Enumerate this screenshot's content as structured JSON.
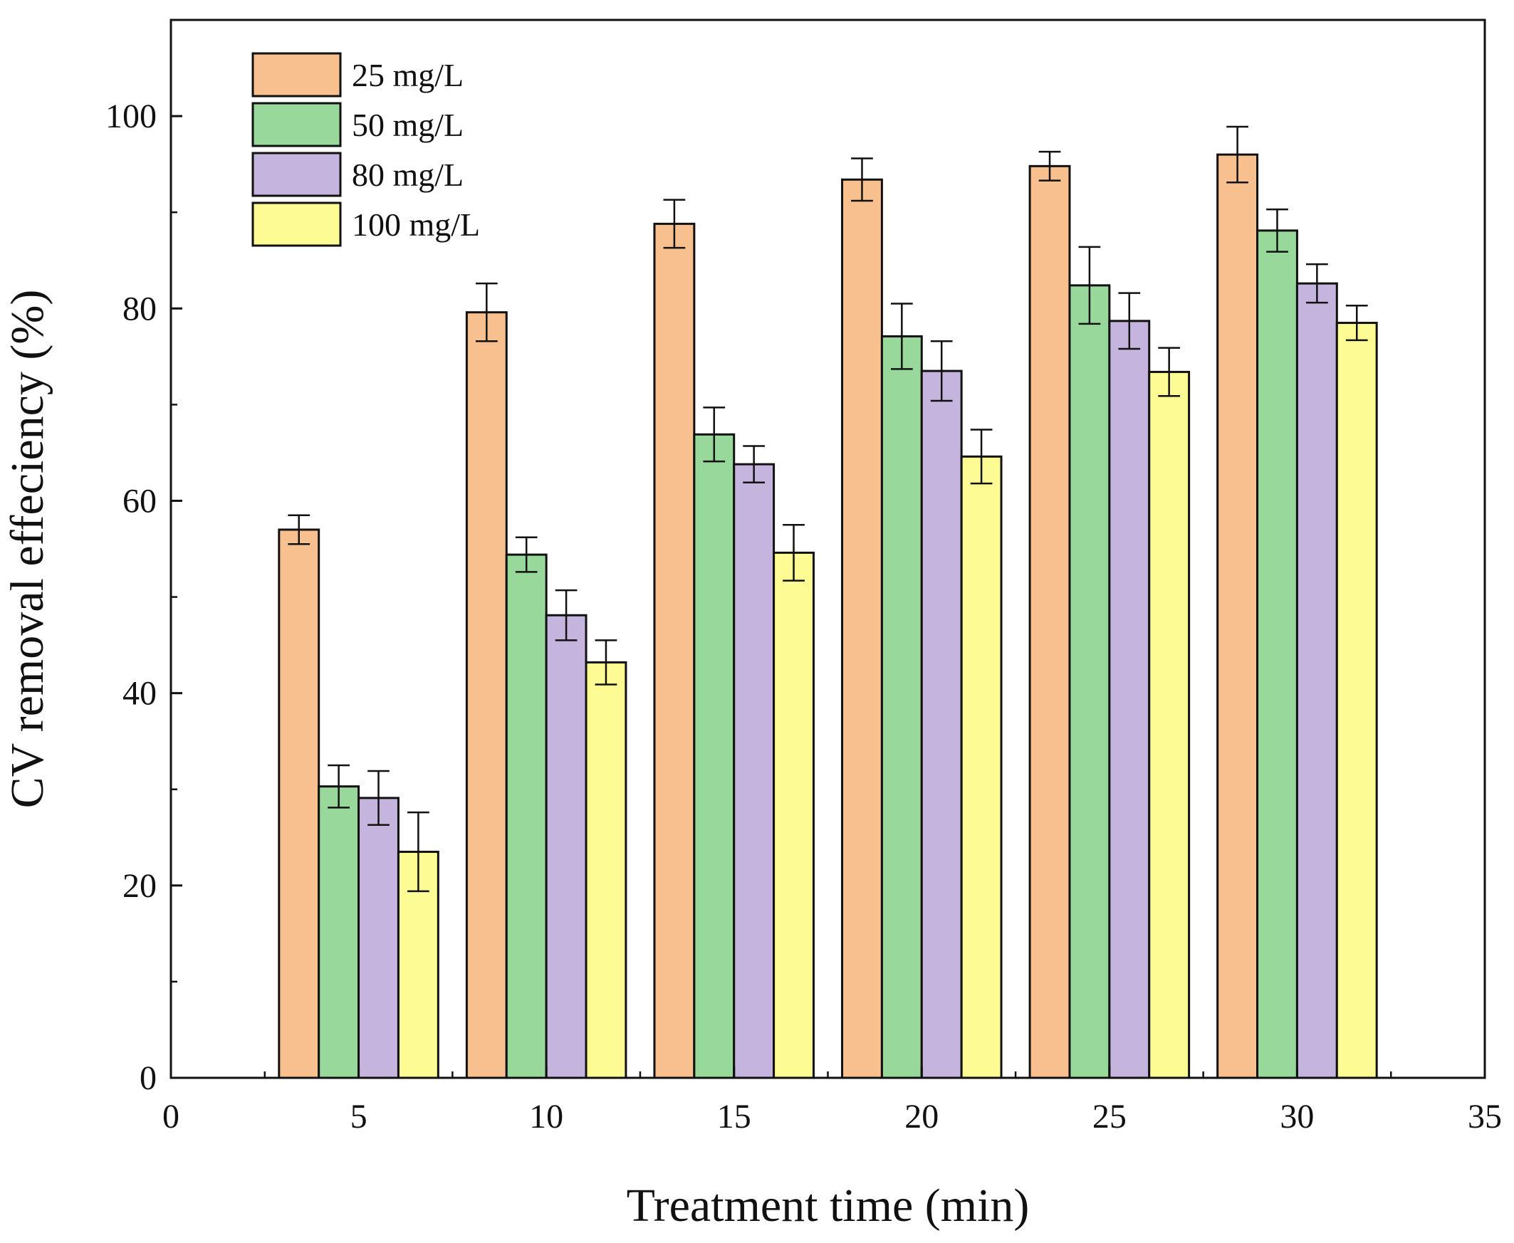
{
  "chart_data": {
    "type": "bar",
    "title": "",
    "xlabel": "Treatment time (min)",
    "ylabel": "CV removal effeciency (%)",
    "xlim": [
      0,
      35
    ],
    "ylim": [
      0,
      110
    ],
    "x_ticks": [
      "0",
      "5",
      "10",
      "15",
      "20",
      "25",
      "30",
      "35"
    ],
    "y_ticks": [
      "0",
      "20",
      "40",
      "60",
      "80",
      "100"
    ],
    "x": [
      5,
      10,
      15,
      20,
      25,
      30
    ],
    "grid": false,
    "legend_position": "top-left",
    "error_bars": true,
    "series": [
      {
        "name": "25 mg/L",
        "color": "#f9c08f",
        "values": [
          57.0,
          79.6,
          88.8,
          93.4,
          94.8,
          96.0
        ],
        "errors": [
          1.5,
          3.0,
          2.5,
          2.2,
          1.5,
          2.9
        ]
      },
      {
        "name": "50 mg/L",
        "color": "#98d89b",
        "values": [
          30.3,
          54.4,
          66.9,
          77.1,
          82.4,
          88.1
        ],
        "errors": [
          2.2,
          1.8,
          2.8,
          3.4,
          4.0,
          2.2
        ]
      },
      {
        "name": "80 mg/L",
        "color": "#c5b4dd",
        "values": [
          29.1,
          48.1,
          63.8,
          73.5,
          78.7,
          82.6
        ],
        "errors": [
          2.8,
          2.6,
          1.9,
          3.1,
          2.9,
          2.0
        ]
      },
      {
        "name": "100 mg/L",
        "color": "#fdfc94",
        "values": [
          23.5,
          43.2,
          54.6,
          64.6,
          73.4,
          78.5
        ],
        "errors": [
          4.1,
          2.3,
          2.9,
          2.8,
          2.5,
          1.8
        ]
      }
    ]
  }
}
